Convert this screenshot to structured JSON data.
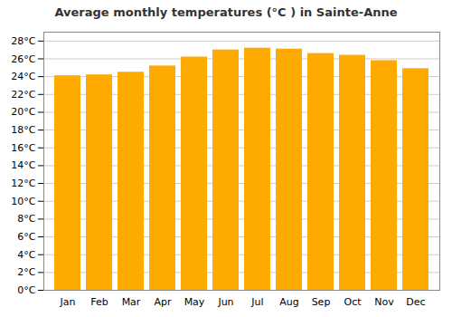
{
  "chart_data": {
    "type": "bar",
    "title": "Average monthly temperatures (°C ) in Sainte-Anne",
    "categories": [
      "Jan",
      "Feb",
      "Mar",
      "Apr",
      "May",
      "Jun",
      "Jul",
      "Aug",
      "Sep",
      "Oct",
      "Nov",
      "Dec"
    ],
    "values": [
      24.1,
      24.2,
      24.5,
      25.2,
      26.2,
      27.0,
      27.2,
      27.1,
      26.6,
      26.4,
      25.8,
      24.9
    ],
    "color": "#FFAA00",
    "ylim": [
      0,
      29
    ],
    "yticks": [
      {
        "value": 0,
        "label": "0°C"
      },
      {
        "value": 2,
        "label": "2°C"
      },
      {
        "value": 4,
        "label": "4°C"
      },
      {
        "value": 6,
        "label": "6°C"
      },
      {
        "value": 8,
        "label": "8°C"
      },
      {
        "value": 10,
        "label": "10°C"
      },
      {
        "value": 12,
        "label": "12°C"
      },
      {
        "value": 14,
        "label": "14°C"
      },
      {
        "value": 16,
        "label": "16°C"
      },
      {
        "value": 18,
        "label": "18°C"
      },
      {
        "value": 20,
        "label": "20°C"
      },
      {
        "value": 22,
        "label": "22°C"
      },
      {
        "value": 24,
        "label": "24°C"
      },
      {
        "value": 26,
        "label": "26°C"
      },
      {
        "value": 28,
        "label": "28°C"
      }
    ],
    "grid": true
  }
}
